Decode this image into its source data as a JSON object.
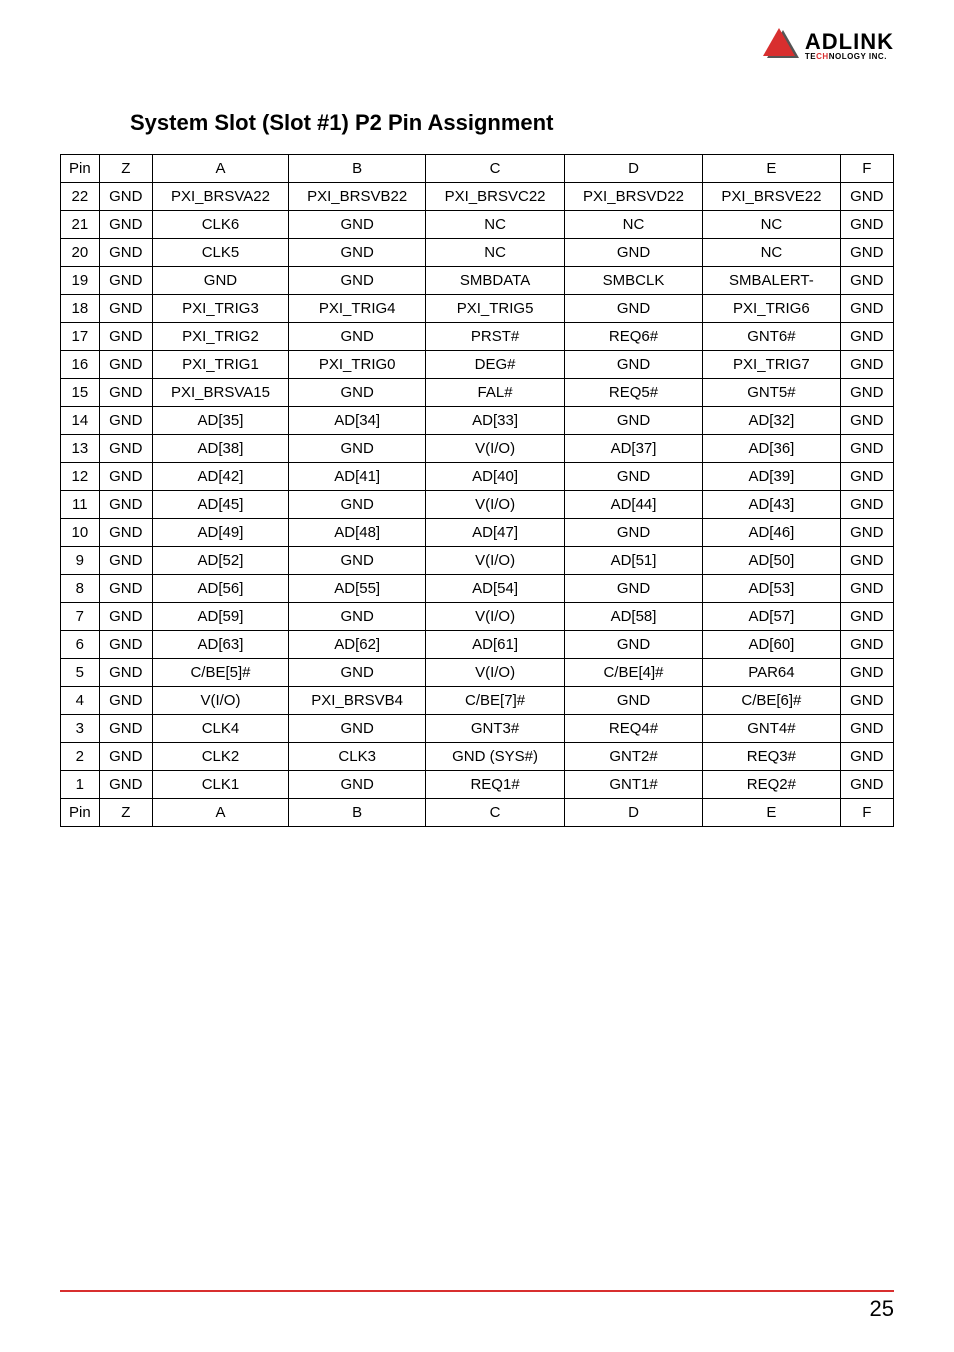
{
  "logo": {
    "main": "ADLINK",
    "sub_prefix": "TE",
    "sub_red": "CH",
    "sub_suffix": "NOLOGY INC.",
    "triangle_color": "#d82f2f",
    "triangle_shadow": "#555555"
  },
  "title": "System Slot (Slot #1) P2 Pin Assignment",
  "table": {
    "columns": [
      "Pin",
      "Z",
      "A",
      "B",
      "C",
      "D",
      "E",
      "F"
    ],
    "rows": [
      [
        "Pin",
        "Z",
        "A",
        "B",
        "C",
        "D",
        "E",
        "F"
      ],
      [
        "22",
        "GND",
        "PXI_BRSVA22",
        "PXI_BRSVB22",
        "PXI_BRSVC22",
        "PXI_BRSVD22",
        "PXI_BRSVE22",
        "GND"
      ],
      [
        "21",
        "GND",
        "CLK6",
        "GND",
        "NC",
        "NC",
        "NC",
        "GND"
      ],
      [
        "20",
        "GND",
        "CLK5",
        "GND",
        "NC",
        "GND",
        "NC",
        "GND"
      ],
      [
        "19",
        "GND",
        "GND",
        "GND",
        "SMBDATA",
        "SMBCLK",
        "SMBALERT-",
        "GND"
      ],
      [
        "18",
        "GND",
        "PXI_TRIG3",
        "PXI_TRIG4",
        "PXI_TRIG5",
        "GND",
        "PXI_TRIG6",
        "GND"
      ],
      [
        "17",
        "GND",
        "PXI_TRIG2",
        "GND",
        "PRST#",
        "REQ6#",
        "GNT6#",
        "GND"
      ],
      [
        "16",
        "GND",
        "PXI_TRIG1",
        "PXI_TRIG0",
        "DEG#",
        "GND",
        "PXI_TRIG7",
        "GND"
      ],
      [
        "15",
        "GND",
        "PXI_BRSVA15",
        "GND",
        "FAL#",
        "REQ5#",
        "GNT5#",
        "GND"
      ],
      [
        "14",
        "GND",
        "AD[35]",
        "AD[34]",
        "AD[33]",
        "GND",
        "AD[32]",
        "GND"
      ],
      [
        "13",
        "GND",
        "AD[38]",
        "GND",
        "V(I/O)",
        "AD[37]",
        "AD[36]",
        "GND"
      ],
      [
        "12",
        "GND",
        "AD[42]",
        "AD[41]",
        "AD[40]",
        "GND",
        "AD[39]",
        "GND"
      ],
      [
        "11",
        "GND",
        "AD[45]",
        "GND",
        "V(I/O)",
        "AD[44]",
        "AD[43]",
        "GND"
      ],
      [
        "10",
        "GND",
        "AD[49]",
        "AD[48]",
        "AD[47]",
        "GND",
        "AD[46]",
        "GND"
      ],
      [
        "9",
        "GND",
        "AD[52]",
        "GND",
        "V(I/O)",
        "AD[51]",
        "AD[50]",
        "GND"
      ],
      [
        "8",
        "GND",
        "AD[56]",
        "AD[55]",
        "AD[54]",
        "GND",
        "AD[53]",
        "GND"
      ],
      [
        "7",
        "GND",
        "AD[59]",
        "GND",
        "V(I/O)",
        "AD[58]",
        "AD[57]",
        "GND"
      ],
      [
        "6",
        "GND",
        "AD[63]",
        "AD[62]",
        "AD[61]",
        "GND",
        "AD[60]",
        "GND"
      ],
      [
        "5",
        "GND",
        "C/BE[5]#",
        "GND",
        "V(I/O)",
        "C/BE[4]#",
        "PAR64",
        "GND"
      ],
      [
        "4",
        "GND",
        "V(I/O)",
        "PXI_BRSVB4",
        "C/BE[7]#",
        "GND",
        "C/BE[6]#",
        "GND"
      ],
      [
        "3",
        "GND",
        "CLK4",
        "GND",
        "GNT3#",
        "REQ4#",
        "GNT4#",
        "GND"
      ],
      [
        "2",
        "GND",
        "CLK2",
        "CLK3",
        "GND (SYS#)",
        "GNT2#",
        "REQ3#",
        "GND"
      ],
      [
        "1",
        "GND",
        "CLK1",
        "GND",
        "REQ1#",
        "GNT1#",
        "REQ2#",
        "GND"
      ],
      [
        "Pin",
        "Z",
        "A",
        "B",
        "C",
        "D",
        "E",
        "F"
      ]
    ]
  },
  "page_number": "25"
}
